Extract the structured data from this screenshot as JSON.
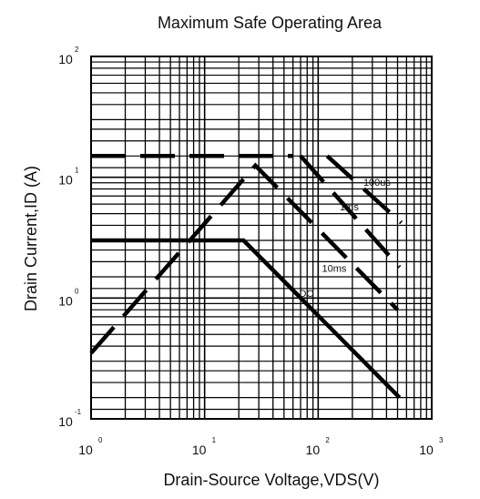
{
  "chart_data": {
    "type": "line",
    "title": "Maximum Safe Operating  Area",
    "xlabel": "Drain-Source   Voltage,VDS(V)",
    "ylabel": "Drain Current,ID (A)",
    "xscale": "log",
    "yscale": "log",
    "xlim": [
      1,
      1000
    ],
    "ylim": [
      0.1,
      100
    ],
    "grid": true,
    "x_ticks": [
      {
        "base": "10",
        "exp": "0"
      },
      {
        "base": "10",
        "exp": "1"
      },
      {
        "base": "10",
        "exp": "2"
      },
      {
        "base": "10",
        "exp": "3"
      }
    ],
    "y_ticks": [
      {
        "base": "10",
        "exp": "-1"
      },
      {
        "base": "10",
        "exp": "0"
      },
      {
        "base": "10",
        "exp": "1"
      },
      {
        "base": "10",
        "exp": "2"
      }
    ],
    "series": [
      {
        "style": "dashed",
        "points": [
          [
            1,
            15
          ],
          [
            60,
            15
          ]
        ]
      },
      {
        "style": "dashed",
        "points": [
          [
            1,
            0.35
          ],
          [
            28,
            12.5
          ],
          [
            500,
            0.8
          ]
        ]
      },
      {
        "style": "dashed",
        "points": [
          [
            70,
            15
          ],
          [
            520,
            1.8
          ]
        ]
      },
      {
        "style": "dashed",
        "points": [
          [
            120,
            15
          ],
          [
            540,
            4.2
          ]
        ]
      },
      {
        "style": "solid",
        "points": [
          [
            1,
            3
          ],
          [
            22,
            3
          ],
          [
            520,
            0.15
          ]
        ]
      }
    ],
    "annotations": [
      {
        "text": "100us",
        "x": 250,
        "y": 8.5
      },
      {
        "text": "1ms",
        "x": 155,
        "y": 5.3
      },
      {
        "text": "10ms",
        "x": 108,
        "y": 1.65
      },
      {
        "text": "DC",
        "x": 68,
        "y": 1.02
      }
    ]
  }
}
